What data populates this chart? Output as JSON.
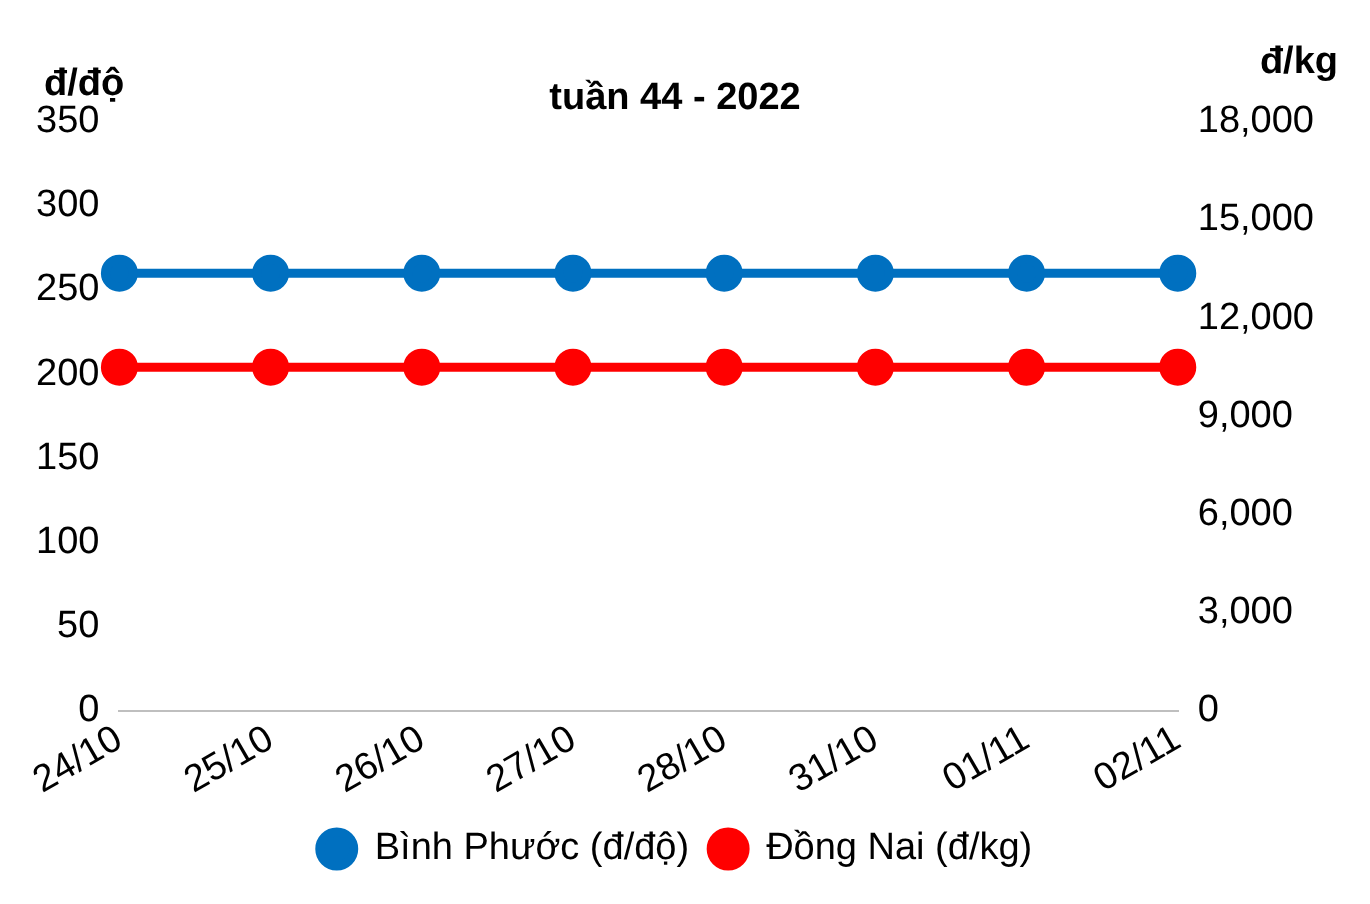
{
  "chart_data": {
    "type": "line",
    "title": "tuần 44 - 2022",
    "ylabel": "đ/độ",
    "y2label": "đ/kg",
    "categories": [
      "24/10",
      "25/10",
      "26/10",
      "27/10",
      "28/10",
      "31/10",
      "01/11",
      "02/11"
    ],
    "series": [
      {
        "name": "Bình Phước (đ/độ)",
        "color": "#0070c0",
        "values": [
          260,
          260,
          260,
          260,
          260,
          260,
          260,
          260
        ]
      },
      {
        "name": "Đồng Nai (đ/kg)",
        "color": "#ff0000",
        "axis": "y2",
        "values": [
          10500,
          10500,
          10500,
          10500,
          10500,
          10500,
          10500,
          10500
        ]
      }
    ],
    "ylim": [
      0,
      350
    ],
    "yticks": [
      0,
      50,
      100,
      150,
      200,
      250,
      300,
      350
    ],
    "y2lim": [
      0,
      18000
    ],
    "y2ticks": [
      {
        "value": 0,
        "label": "0"
      },
      {
        "value": 3000,
        "label": "3,000"
      },
      {
        "value": 6000,
        "label": "6,000"
      },
      {
        "value": 9000,
        "label": "9,000"
      },
      {
        "value": 12000,
        "label": "12,000"
      },
      {
        "value": 15000,
        "label": "15,000"
      },
      {
        "value": 18000,
        "label": "18,000"
      }
    ],
    "grid": false,
    "legend": "bottom",
    "marker": "circle",
    "line_style": "solid"
  }
}
